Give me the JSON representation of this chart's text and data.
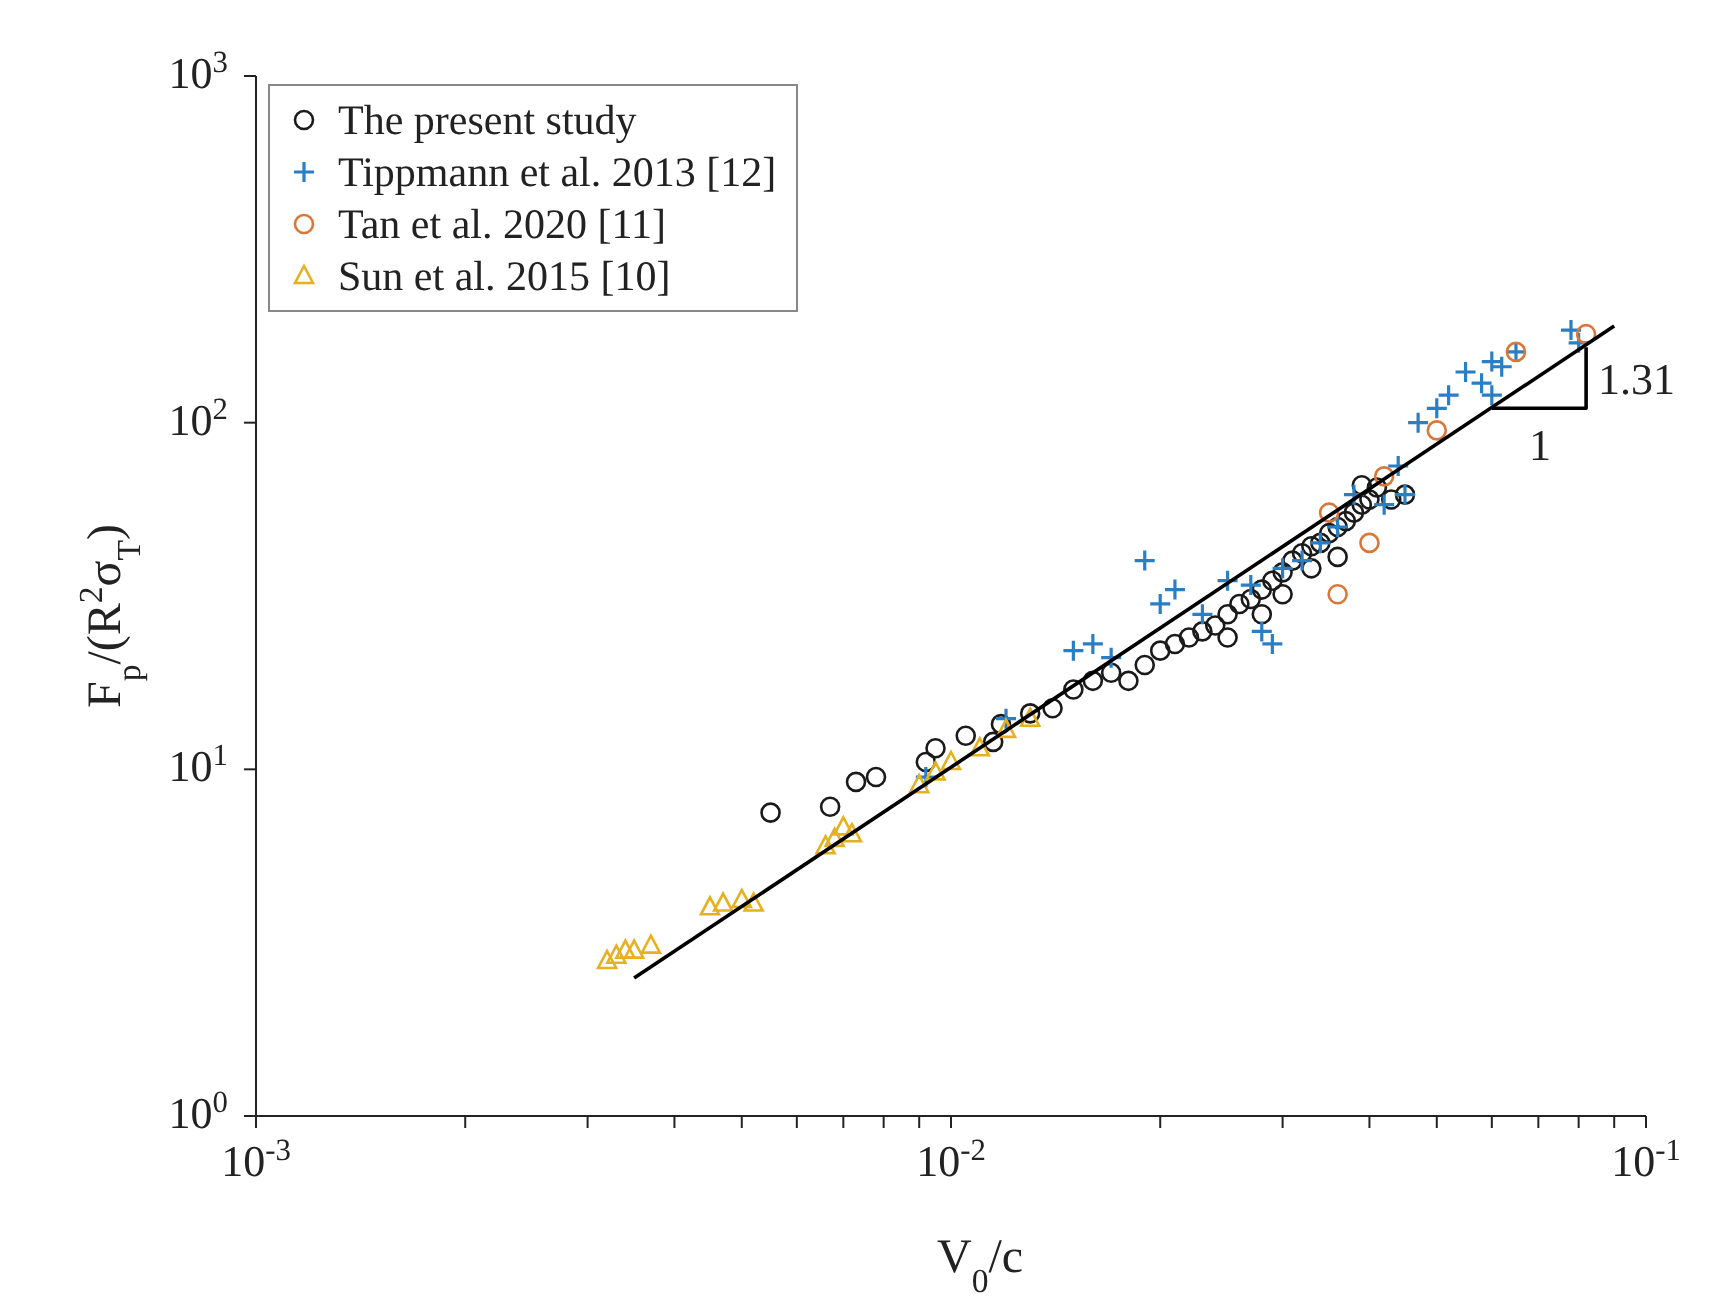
{
  "chart_data": {
    "type": "scatter",
    "xlabel": "V$_{0}$/c",
    "ylabel": "F$_{p}$/(R$^{2}$σ$_{T}$)",
    "log": "xy",
    "legend": "top left",
    "xlim": [
      0.001,
      0.1
    ],
    "ylim": [
      1,
      1000
    ],
    "xticks": [
      {
        "value": 0.001,
        "label": "10$^{-3}$"
      },
      {
        "value": 0.002,
        "label": null
      },
      {
        "value": 0.003,
        "label": null
      },
      {
        "value": 0.004,
        "label": null
      },
      {
        "value": 0.005,
        "label": null
      },
      {
        "value": 0.006,
        "label": null
      },
      {
        "value": 0.007,
        "label": null
      },
      {
        "value": 0.008,
        "label": null
      },
      {
        "value": 0.009,
        "label": null
      },
      {
        "value": 0.01,
        "label": "10$^{-2}$"
      },
      {
        "value": 0.02,
        "label": null
      },
      {
        "value": 0.03,
        "label": null
      },
      {
        "value": 0.04,
        "label": null
      },
      {
        "value": 0.05,
        "label": null
      },
      {
        "value": 0.06,
        "label": null
      },
      {
        "value": 0.07,
        "label": null
      },
      {
        "value": 0.08,
        "label": null
      },
      {
        "value": 0.09,
        "label": null
      },
      {
        "value": 0.1,
        "label": "10$^{-1}$"
      }
    ],
    "yticks": [
      {
        "value": 1,
        "label": "10$^{0}$"
      },
      {
        "value": 10,
        "label": "10$^{1}$"
      },
      {
        "value": 100,
        "label": "10$^{2}$"
      },
      {
        "value": 1000,
        "label": "10$^{3}$"
      }
    ],
    "annotations": [
      "1",
      "1.31"
    ],
    "series": [
      {
        "name": "The present study",
        "color": "#1a1a1a",
        "marker": "circle",
        "x": [
          0.0055,
          0.0067,
          0.0073,
          0.0078,
          0.0092,
          0.0095,
          0.0105,
          0.0115,
          0.0118,
          0.013,
          0.014,
          0.015,
          0.016,
          0.017,
          0.018,
          0.019,
          0.02,
          0.021,
          0.022,
          0.023,
          0.024,
          0.025,
          0.026,
          0.027,
          0.028,
          0.029,
          0.03,
          0.031,
          0.032,
          0.033,
          0.034,
          0.035,
          0.036,
          0.037,
          0.038,
          0.039,
          0.04,
          0.041,
          0.039,
          0.028,
          0.03,
          0.025,
          0.033,
          0.036,
          0.043,
          0.045
        ],
        "values": [
          7.5,
          7.8,
          9.2,
          9.5,
          10.5,
          11.5,
          12.5,
          12,
          13.5,
          14.5,
          15,
          17,
          18,
          19,
          18,
          20,
          22,
          23,
          24,
          25,
          26,
          28,
          30,
          31,
          33,
          35,
          37,
          40,
          42,
          44,
          45,
          48,
          50,
          52,
          55,
          58,
          60,
          65,
          66,
          28,
          32,
          24,
          38,
          41,
          60,
          62
        ]
      },
      {
        "name": "Tippmann et al. 2013 [12]",
        "color": "#2a7fc4",
        "marker": "cross",
        "x": [
          0.0092,
          0.012,
          0.015,
          0.016,
          0.017,
          0.019,
          0.02,
          0.021,
          0.023,
          0.025,
          0.027,
          0.028,
          0.029,
          0.03,
          0.032,
          0.034,
          0.036,
          0.038,
          0.042,
          0.045,
          0.044,
          0.047,
          0.05,
          0.052,
          0.055,
          0.058,
          0.06,
          0.062,
          0.065,
          0.078,
          0.08,
          0.06
        ],
        "values": [
          9.5,
          14,
          22,
          23,
          21,
          40,
          30,
          33,
          28,
          35,
          34,
          25,
          23,
          38,
          40,
          45,
          50,
          62,
          58,
          62,
          75,
          100,
          110,
          120,
          140,
          130,
          150,
          145,
          160,
          185,
          170,
          120
        ]
      },
      {
        "name": "Tan et al. 2020 [11]",
        "color": "#d9773a",
        "marker": "circle",
        "x": [
          0.035,
          0.036,
          0.042,
          0.05,
          0.065,
          0.082,
          0.04
        ],
        "values": [
          55,
          32,
          70,
          95,
          160,
          180,
          45
        ]
      },
      {
        "name": "Sun et al. 2015 [10]",
        "color": "#e6b020",
        "marker": "triangle",
        "x": [
          0.0032,
          0.0033,
          0.0034,
          0.0035,
          0.0037,
          0.0045,
          0.0047,
          0.005,
          0.0052,
          0.0066,
          0.0068,
          0.007,
          0.0072,
          0.009,
          0.0095,
          0.01,
          0.011,
          0.012,
          0.013
        ],
        "values": [
          2.8,
          2.9,
          3.0,
          3.0,
          3.1,
          4.0,
          4.1,
          4.2,
          4.1,
          6.0,
          6.3,
          6.8,
          6.5,
          9.0,
          9.8,
          10.5,
          11.5,
          13,
          14
        ]
      },
      {
        "type": "line",
        "color": "#000000",
        "marker": "none",
        "line_style": "solid",
        "x": [
          0.0035,
          0.09
        ],
        "values": [
          2.5,
          190
        ]
      },
      {
        "type": "line",
        "color": "#000000",
        "marker": "none",
        "line_style": "solid",
        "x": [
          0.06,
          0.082,
          0.082
        ],
        "values": [
          110,
          110,
          165
        ]
      }
    ]
  }
}
